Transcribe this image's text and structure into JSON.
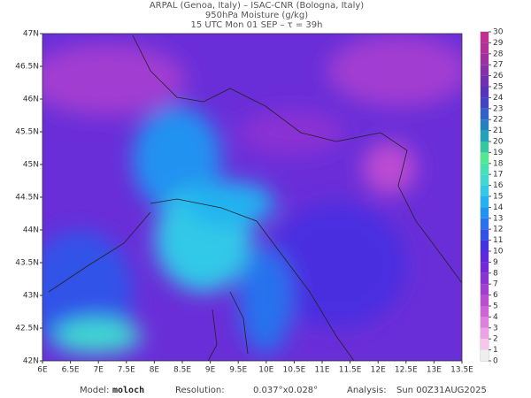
{
  "header": {
    "lines": [
      "ARPAL (Genoa, Italy)  –  ISAC-CNR (Bologna, Italy)",
      "950hPa Moisture (g/kg)",
      "15 UTC Mon 01 SEP  –  τ = 39h"
    ]
  },
  "map": {
    "xlim": [
      6,
      13.5
    ],
    "ylim": [
      42,
      47
    ],
    "xticks": [
      {
        "value": 6,
        "label": "6E"
      },
      {
        "value": 6.5,
        "label": "6.5E"
      },
      {
        "value": 7,
        "label": "7E"
      },
      {
        "value": 7.5,
        "label": "7.5E"
      },
      {
        "value": 8,
        "label": "8E"
      },
      {
        "value": 8.5,
        "label": "8.5E"
      },
      {
        "value": 9,
        "label": "9E"
      },
      {
        "value": 9.5,
        "label": "9.5E"
      },
      {
        "value": 10,
        "label": "10E"
      },
      {
        "value": 10.5,
        "label": "10.5E"
      },
      {
        "value": 11,
        "label": "11E"
      },
      {
        "value": 11.5,
        "label": "11.5E"
      },
      {
        "value": 12,
        "label": "12E"
      },
      {
        "value": 12.5,
        "label": "12.5E"
      },
      {
        "value": 13,
        "label": "13E"
      },
      {
        "value": 13.5,
        "label": "13.5E"
      }
    ],
    "yticks": [
      {
        "value": 42,
        "label": "42N"
      },
      {
        "value": 42.5,
        "label": "42.5N"
      },
      {
        "value": 43,
        "label": "43N"
      },
      {
        "value": 43.5,
        "label": "43.5N"
      },
      {
        "value": 44,
        "label": "44N"
      },
      {
        "value": 44.5,
        "label": "44.5N"
      },
      {
        "value": 45,
        "label": "45N"
      },
      {
        "value": 45.5,
        "label": "45.5N"
      },
      {
        "value": 46,
        "label": "46N"
      },
      {
        "value": 46.5,
        "label": "46.5N"
      },
      {
        "value": 47,
        "label": "47N"
      }
    ]
  },
  "colorbar": {
    "lim": [
      0,
      30
    ],
    "ticks": [
      0,
      1,
      2,
      3,
      4,
      5,
      6,
      7,
      8,
      9,
      10,
      11,
      12,
      13,
      14,
      15,
      16,
      17,
      18,
      19,
      20,
      21,
      22,
      23,
      24,
      25,
      26,
      27,
      28,
      29,
      30
    ],
    "colors": [
      "#eeeeee",
      "#f6c6ee",
      "#eea2e6",
      "#e080de",
      "#d062d8",
      "#bc4cd2",
      "#a23ed2",
      "#8a32d4",
      "#7428d8",
      "#5e28e0",
      "#4232e2",
      "#3052e8",
      "#2872ee",
      "#2092f0",
      "#22b2f0",
      "#32c8e8",
      "#40d8d2",
      "#44e2b2",
      "#52e890",
      "#34c8a2",
      "#22a2b8",
      "#2282c0",
      "#3062c8",
      "#4242c2",
      "#5832ba",
      "#7030b2",
      "#8830aa",
      "#a030a2",
      "#b03098",
      "#c03090"
    ]
  },
  "footer": {
    "model_label": "Model:",
    "model": "moloch",
    "resolution_label": "Resolution:",
    "resolution": "0.037°x0.028°",
    "analysis_label": "Analysis:",
    "analysis": "Sun 00Z31AUG2025"
  }
}
